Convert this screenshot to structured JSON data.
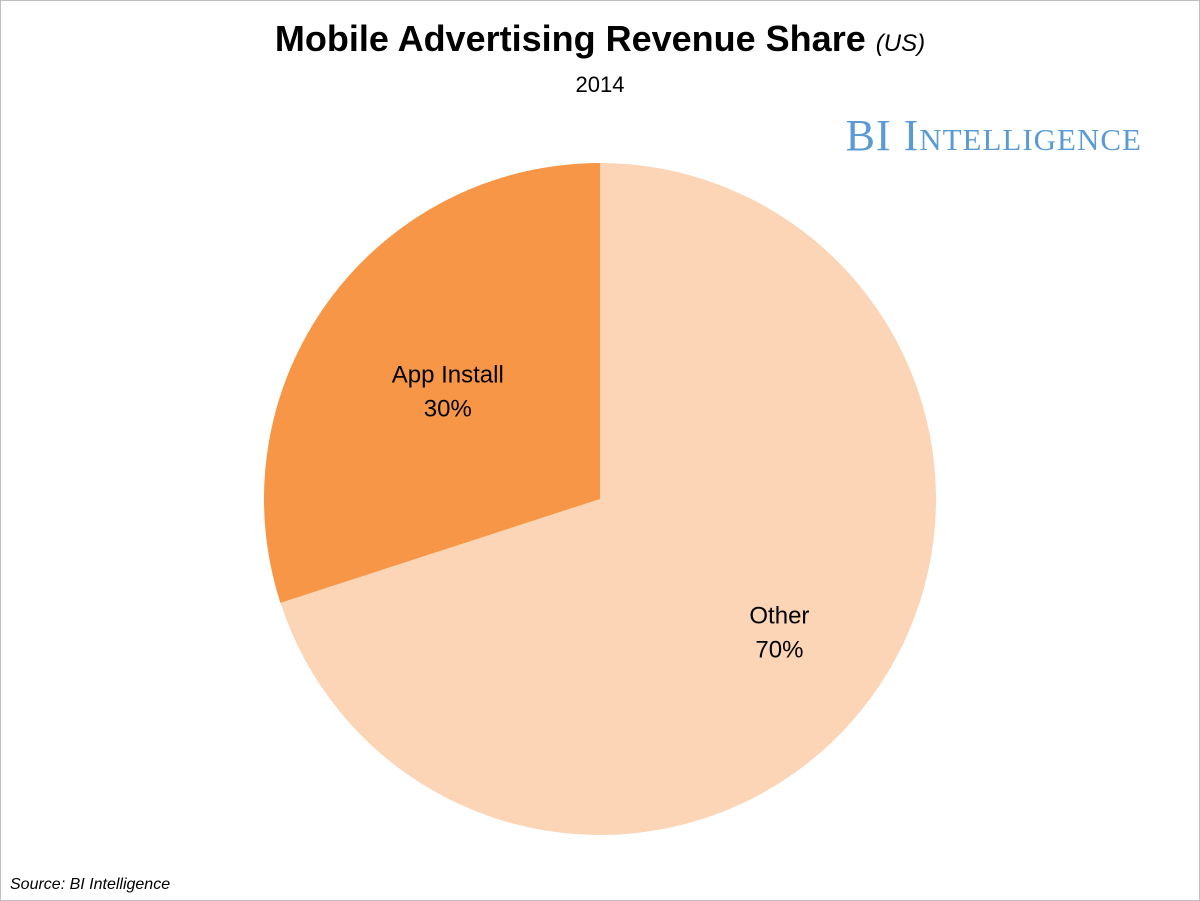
{
  "header": {
    "title": "Mobile Advertising Revenue Share",
    "title_qualifier": "(US)",
    "subtitle": "2014"
  },
  "brand": {
    "text": "BI Intelligence"
  },
  "footer": {
    "source": "Source: BI Intelligence"
  },
  "chart_data": {
    "type": "pie",
    "title": "Mobile Advertising Revenue Share (US)",
    "subtitle": "2014",
    "slices": [
      {
        "label": "App Install",
        "value": 30,
        "value_label": "30%",
        "color": "#f79646"
      },
      {
        "label": "Other",
        "value": 70,
        "value_label": "70%",
        "color": "#fbd5b5"
      }
    ],
    "legend": "none",
    "data_labels": "inside"
  }
}
